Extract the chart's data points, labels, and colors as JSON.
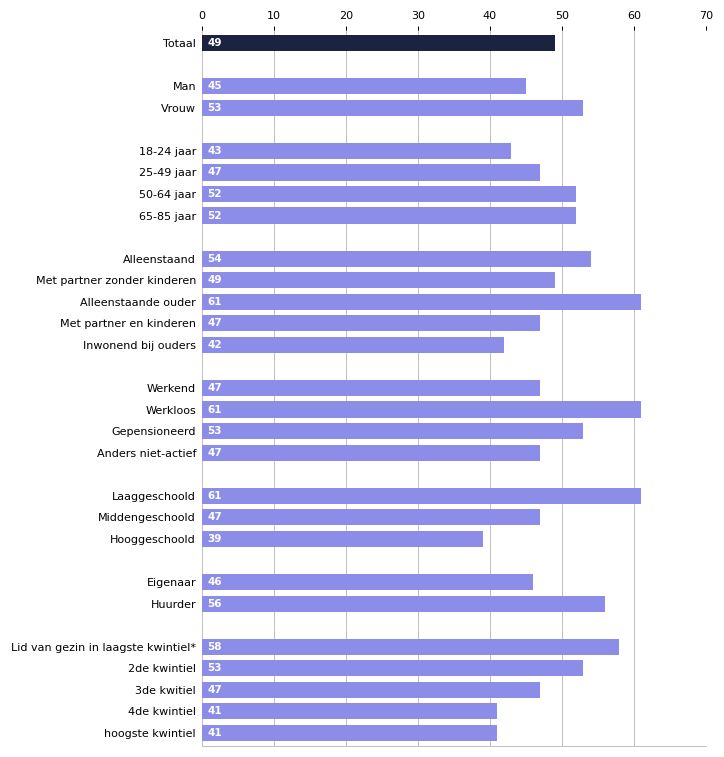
{
  "categories": [
    "Totaal",
    "",
    "Man",
    "Vrouw",
    " ",
    "18-24 jaar",
    "25-49 jaar",
    "50-64 jaar",
    "65-85 jaar",
    "  ",
    "Alleenstaand",
    "Met partner zonder kinderen",
    "Alleenstaande ouder",
    "Met partner en kinderen",
    "Inwonend bij ouders",
    "   ",
    "Werkend",
    "Werkloos",
    "Gepensioneerd",
    "Anders niet-actief",
    "    ",
    "Laaggeschoold",
    "Middengeschoold",
    "Hooggeschoold",
    "     ",
    "Eigenaar",
    "Huurder",
    "      ",
    "Lid van gezin in laagste kwintiel*",
    "2de kwintiel",
    "3de kwitiel",
    "4de kwintiel",
    "hoogste kwintiel"
  ],
  "values": [
    49,
    null,
    45,
    53,
    null,
    43,
    47,
    52,
    52,
    null,
    54,
    49,
    61,
    47,
    42,
    null,
    47,
    61,
    53,
    47,
    null,
    61,
    47,
    39,
    null,
    46,
    56,
    null,
    58,
    53,
    47,
    41,
    41
  ],
  "bar_color_default": "#8b8de8",
  "bar_color_totaal": "#1c2340",
  "label_color": "#ffffff",
  "xlim": [
    0,
    70
  ],
  "xticks": [
    0,
    10,
    20,
    30,
    40,
    50,
    60,
    70
  ],
  "grid_color": "#c0c0c0",
  "figure_bg": "#ffffff",
  "axes_bg": "#ffffff",
  "bar_height": 0.75,
  "label_fontsize": 7.5,
  "tick_fontsize": 8
}
